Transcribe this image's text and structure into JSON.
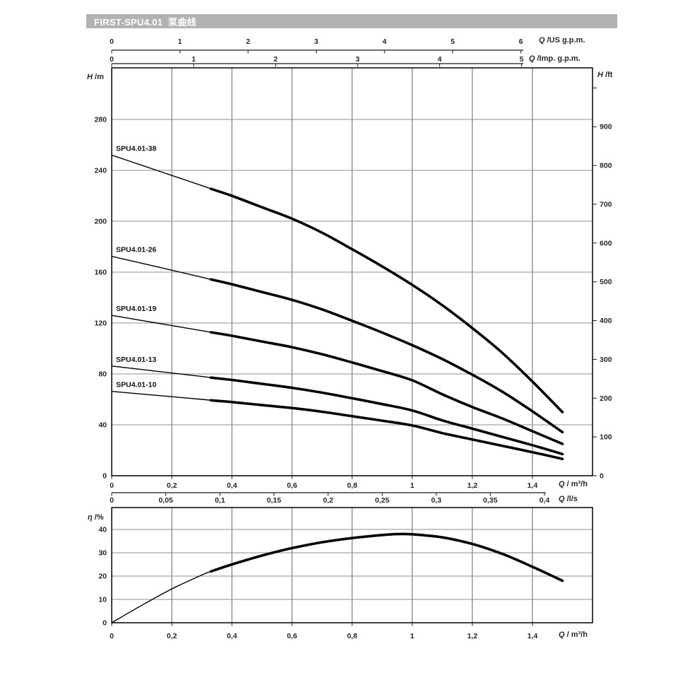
{
  "header": {
    "title": "FIRST-SPU4.01  泵曲线"
  },
  "axes": {
    "us_gpm": {
      "symbol": "Q",
      "unit": " /US g.p.m.",
      "ticks": [
        "0",
        "1",
        "2",
        "3",
        "4",
        "5",
        "6"
      ]
    },
    "imp_gpm": {
      "symbol": "Q",
      "unit": " /Imp. g.p.m.",
      "ticks": [
        "0",
        "1",
        "2",
        "3",
        "4",
        "5"
      ]
    },
    "head_m": {
      "symbol": "H",
      "unit": " /m",
      "ticks": [
        "0",
        "40",
        "80",
        "120",
        "160",
        "200",
        "240",
        "280"
      ]
    },
    "head_ft": {
      "symbol": "H",
      "unit": " /ft",
      "ticks": [
        "0",
        "100",
        "200",
        "300",
        "400",
        "500",
        "600",
        "700",
        "800",
        "900",
        ""
      ]
    },
    "flow_m3h_main": {
      "symbol": "Q",
      "unit": " / m³/h",
      "ticks": [
        "0",
        "0,2",
        "0,4",
        "0,6",
        "0,8",
        "1",
        "1,2",
        "1,4"
      ]
    },
    "flow_ls": {
      "symbol": "Q",
      "unit": " /l/s",
      "ticks": [
        "0",
        "0,05",
        "0,1",
        "0,15",
        "0,2",
        "0,25",
        "0,3",
        "0,35",
        "0,4"
      ]
    },
    "eta_pct": {
      "symbol": "η",
      "unit": " /%",
      "ticks": [
        "0",
        "10",
        "20",
        "30",
        "40"
      ]
    },
    "flow_m3h_lower": {
      "symbol": "Q",
      "unit": " / m³/h",
      "ticks": [
        "0",
        "0,2",
        "0,4",
        "0,6",
        "0,8",
        "1",
        "1,2",
        "1,4"
      ]
    }
  },
  "chart_data": [
    {
      "type": "line",
      "title": "pump head curves",
      "xlabel": "Q / m³/h",
      "ylabel": "H / m",
      "xlim": [
        0,
        1.6
      ],
      "ylim": [
        0,
        320
      ],
      "grid": "on",
      "min_flow_q": 0.33,
      "x": [
        0,
        0.1,
        0.2,
        0.3,
        0.33,
        0.4,
        0.5,
        0.6,
        0.7,
        0.8,
        0.9,
        1.0,
        1.1,
        1.2,
        1.3,
        1.4,
        1.5
      ],
      "series": [
        {
          "name": "SPU4.01-38",
          "values": [
            252,
            244,
            236,
            228,
            225.5,
            220,
            211,
            202,
            191,
            178,
            164.5,
            150,
            134,
            116,
            96.5,
            74,
            50
          ]
        },
        {
          "name": "SPU4.01-26",
          "values": [
            172.4,
            167,
            161.5,
            156,
            154.3,
            150.5,
            144.4,
            138.2,
            130.7,
            121.8,
            112.5,
            102.6,
            91.7,
            79.4,
            66,
            50.6,
            34.2
          ]
        },
        {
          "name": "SPU4.01-19",
          "values": [
            126,
            122,
            118,
            114,
            112.7,
            110,
            105.5,
            101,
            95.5,
            89,
            82.2,
            75,
            64,
            54,
            45,
            35,
            25
          ]
        },
        {
          "name": "SPU4.01-13",
          "values": [
            86.2,
            83.5,
            80.7,
            78,
            77.1,
            75.3,
            72.2,
            69.1,
            65.3,
            60.9,
            56.3,
            51.3,
            43.5,
            37,
            30.5,
            24,
            17
          ]
        },
        {
          "name": "SPU4.01-10",
          "values": [
            66.3,
            64.2,
            62.1,
            60,
            59.3,
            57.9,
            55.5,
            53.2,
            50.3,
            46.8,
            43.3,
            39.5,
            33.5,
            28.5,
            23.5,
            18.5,
            13.2
          ]
        }
      ]
    },
    {
      "type": "line",
      "title": "efficiency curve",
      "xlabel": "Q / m³/h",
      "ylabel": "η / %",
      "xlim": [
        0,
        1.6
      ],
      "ylim": [
        0,
        48
      ],
      "grid": "on",
      "min_flow_q": 0.33,
      "x": [
        0,
        0.1,
        0.2,
        0.3,
        0.33,
        0.4,
        0.5,
        0.6,
        0.7,
        0.8,
        0.9,
        0.95,
        1.0,
        1.1,
        1.2,
        1.3,
        1.4,
        1.5
      ],
      "series": [
        {
          "name": "η",
          "values": [
            0,
            7.5,
            14.5,
            20.5,
            22,
            25,
            28.8,
            32,
            34.5,
            36.3,
            37.6,
            38,
            37.9,
            36.6,
            33.8,
            29.5,
            24,
            18
          ]
        }
      ]
    }
  ]
}
